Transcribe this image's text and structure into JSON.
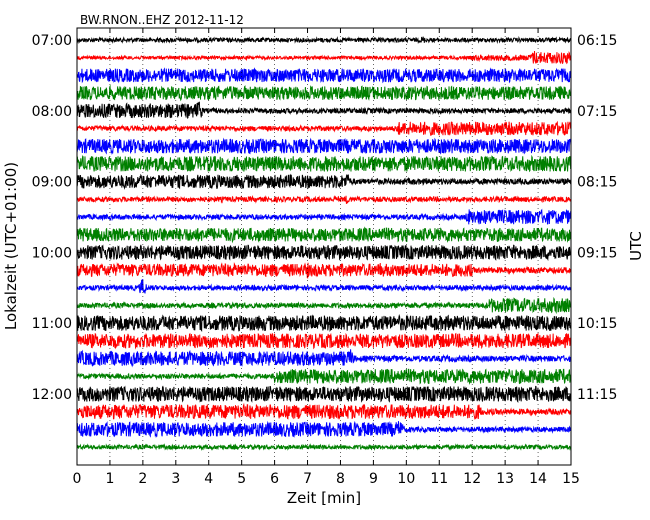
{
  "chart_data": {
    "type": "line",
    "title": "BW.RNON..EHZ 2012-11-12",
    "xlabel": "Zeit  [min]",
    "ylabel_left": "Lokalzeit (UTC+01:00)",
    "ylabel_right": "UTC",
    "xlim": [
      0,
      15
    ],
    "xticks": [
      0,
      1,
      2,
      3,
      4,
      5,
      6,
      7,
      8,
      9,
      10,
      11,
      12,
      13,
      14,
      15
    ],
    "grid": "vertical-dotted",
    "colors": [
      "#000000",
      "#ff0000",
      "#0000ff",
      "#008000"
    ],
    "left_ticks": [
      "07:00",
      "08:00",
      "09:00",
      "10:00",
      "11:00",
      "12:00"
    ],
    "right_ticks": [
      "06:15",
      "07:15",
      "08:15",
      "09:15",
      "10:15",
      "11:15"
    ],
    "traces": [
      {
        "color": "black",
        "amplitude": 0.25,
        "segments": [
          [
            0,
            15,
            0.25
          ]
        ],
        "bursts": [
          [
            10.5,
            0.5
          ]
        ]
      },
      {
        "color": "red",
        "amplitude": 0.2,
        "segments": [
          [
            0,
            12,
            0.2
          ],
          [
            12,
            13.8,
            0.35
          ],
          [
            13.8,
            15,
            0.7
          ]
        ],
        "bursts": [
          [
            13.9,
            1.0
          ]
        ]
      },
      {
        "color": "blue",
        "amplitude": 0.8,
        "segments": [
          [
            0,
            15,
            0.8
          ]
        ],
        "bursts": []
      },
      {
        "color": "green",
        "amplitude": 0.8,
        "segments": [
          [
            0,
            15,
            0.8
          ]
        ],
        "bursts": []
      },
      {
        "color": "black",
        "amplitude": 0.85,
        "segments": [
          [
            0,
            3.7,
            0.85
          ],
          [
            3.7,
            15,
            0.3
          ]
        ],
        "bursts": [
          [
            3.7,
            1.4
          ]
        ]
      },
      {
        "color": "red",
        "amplitude": 0.3,
        "segments": [
          [
            0,
            9.7,
            0.3
          ],
          [
            9.7,
            15,
            0.8
          ]
        ],
        "bursts": []
      },
      {
        "color": "blue",
        "amplitude": 0.85,
        "segments": [
          [
            0,
            15,
            0.85
          ]
        ],
        "bursts": []
      },
      {
        "color": "green",
        "amplitude": 0.9,
        "segments": [
          [
            0,
            15,
            0.9
          ]
        ],
        "bursts": []
      },
      {
        "color": "black",
        "amplitude": 0.8,
        "segments": [
          [
            0,
            8.2,
            0.8
          ],
          [
            8.2,
            15,
            0.35
          ]
        ],
        "bursts": [
          [
            8.2,
            1.1
          ]
        ]
      },
      {
        "color": "red",
        "amplitude": 0.3,
        "segments": [
          [
            0,
            15,
            0.3
          ]
        ],
        "bursts": [
          [
            8.2,
            0.6
          ]
        ]
      },
      {
        "color": "blue",
        "amplitude": 0.3,
        "segments": [
          [
            0,
            11.9,
            0.3
          ],
          [
            11.9,
            15,
            0.85
          ]
        ],
        "bursts": [
          [
            11.9,
            1.0
          ]
        ]
      },
      {
        "color": "green",
        "amplitude": 0.8,
        "segments": [
          [
            0,
            15,
            0.8
          ]
        ],
        "bursts": []
      },
      {
        "color": "black",
        "amplitude": 0.85,
        "segments": [
          [
            0,
            15,
            0.85
          ]
        ],
        "bursts": []
      },
      {
        "color": "red",
        "amplitude": 0.75,
        "segments": [
          [
            0,
            12,
            0.75
          ],
          [
            12,
            15,
            0.35
          ]
        ],
        "bursts": [
          [
            7.0,
            1.0
          ],
          [
            9.2,
            1.0
          ],
          [
            10.0,
            0.9
          ],
          [
            11.9,
            0.9
          ]
        ]
      },
      {
        "color": "blue",
        "amplitude": 0.3,
        "segments": [
          [
            0,
            15,
            0.3
          ]
        ],
        "bursts": [
          [
            2.0,
            1.2
          ]
        ]
      },
      {
        "color": "green",
        "amplitude": 0.3,
        "segments": [
          [
            0,
            12.5,
            0.3
          ],
          [
            12.5,
            15,
            0.85
          ]
        ],
        "bursts": []
      },
      {
        "color": "black",
        "amplitude": 0.9,
        "segments": [
          [
            0,
            15,
            0.9
          ]
        ],
        "bursts": []
      },
      {
        "color": "red",
        "amplitude": 0.85,
        "segments": [
          [
            0,
            15,
            0.85
          ]
        ],
        "bursts": []
      },
      {
        "color": "blue",
        "amplitude": 0.85,
        "segments": [
          [
            0,
            8.3,
            0.85
          ],
          [
            8.3,
            15,
            0.35
          ]
        ],
        "bursts": [
          [
            8.3,
            1.2
          ]
        ]
      },
      {
        "color": "green",
        "amplitude": 0.3,
        "segments": [
          [
            0,
            6,
            0.3
          ],
          [
            6,
            15,
            0.85
          ]
        ],
        "bursts": []
      },
      {
        "color": "black",
        "amplitude": 0.9,
        "segments": [
          [
            0,
            15,
            0.9
          ]
        ],
        "bursts": []
      },
      {
        "color": "red",
        "amplitude": 0.85,
        "segments": [
          [
            0,
            12.2,
            0.85
          ],
          [
            12.2,
            15,
            0.35
          ]
        ],
        "bursts": [
          [
            12.2,
            1.0
          ]
        ]
      },
      {
        "color": "blue",
        "amplitude": 0.85,
        "segments": [
          [
            0,
            9.8,
            0.85
          ],
          [
            9.8,
            15,
            0.3
          ]
        ],
        "bursts": [
          [
            9.8,
            1.3
          ]
        ]
      },
      {
        "color": "green",
        "amplitude": 0.25,
        "segments": [
          [
            0,
            15,
            0.25
          ]
        ],
        "bursts": []
      }
    ]
  }
}
